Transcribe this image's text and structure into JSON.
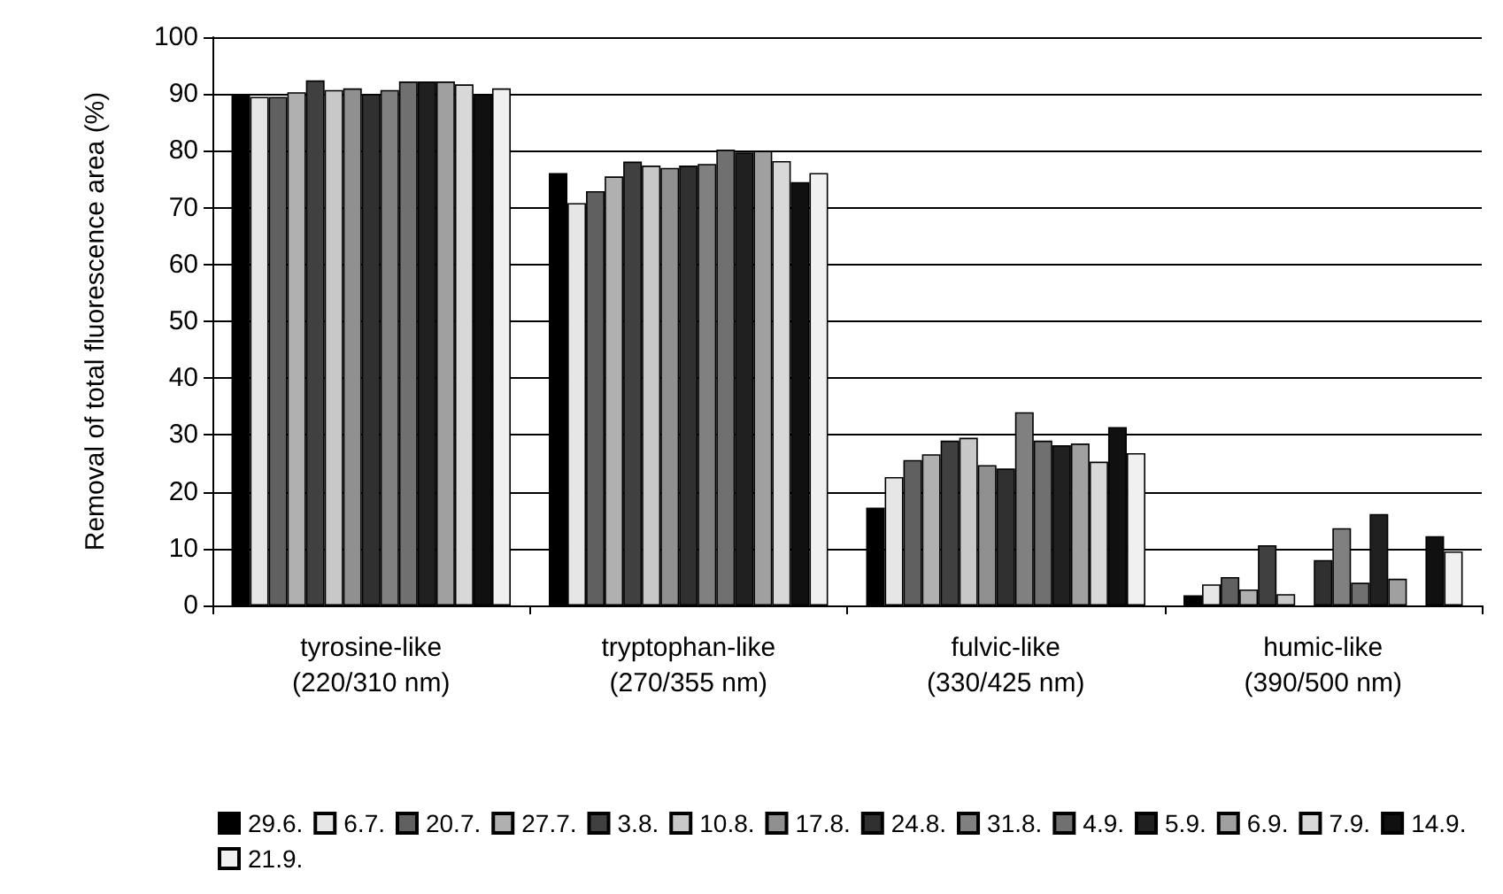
{
  "chart_data": {
    "type": "bar",
    "ylabel": "Removal of total fluorescence area (%)",
    "categories": [
      "tyrosine-like\n(220/310 nm)",
      "tryptophan-like\n(270/355 nm)",
      "fulvic-like\n(330/425 nm)",
      "humic-like\n(390/500 nm)"
    ],
    "series": [
      {
        "name": "29.6.",
        "color": "#000000",
        "values": [
          90,
          76.1,
          17.2,
          1.8
        ]
      },
      {
        "name": "6.7.",
        "color": "#e6e6e6",
        "values": [
          89.5,
          70.8,
          22.6,
          3.7
        ]
      },
      {
        "name": "20.7.",
        "color": "#606060",
        "values": [
          89.5,
          72.9,
          25.6,
          5
        ]
      },
      {
        "name": "27.7.",
        "color": "#b0b0b0",
        "values": [
          90.3,
          75.5,
          26.6,
          2.8
        ]
      },
      {
        "name": "3.8.",
        "color": "#404040",
        "values": [
          92.4,
          78.1,
          29,
          10.6
        ]
      },
      {
        "name": "10.8.",
        "color": "#c8c8c8",
        "values": [
          90.7,
          77.4,
          29.5,
          2
        ]
      },
      {
        "name": "17.8.",
        "color": "#909090",
        "values": [
          91,
          77,
          24.7,
          0
        ]
      },
      {
        "name": "24.8.",
        "color": "#303030",
        "values": [
          90,
          77.4,
          24.1,
          8
        ]
      },
      {
        "name": "31.8.",
        "color": "#808080",
        "values": [
          90.7,
          77.7,
          34,
          13.6
        ]
      },
      {
        "name": "4.9.",
        "color": "#707070",
        "values": [
          92.2,
          80.2,
          29,
          4
        ]
      },
      {
        "name": "5.9.",
        "color": "#202020",
        "values": [
          92.2,
          79.7,
          28.2,
          16.1
        ]
      },
      {
        "name": "6.9.",
        "color": "#a0a0a0",
        "values": [
          92.2,
          80,
          28.5,
          4.7
        ]
      },
      {
        "name": "7.9.",
        "color": "#d8d8d8",
        "values": [
          91.7,
          78.2,
          25.3,
          0
        ]
      },
      {
        "name": "14.9.",
        "color": "#101010",
        "values": [
          90,
          74.5,
          31.4,
          12.2
        ]
      },
      {
        "name": "21.9.",
        "color": "#f0f0f0",
        "values": [
          91,
          76.1,
          26.8,
          9.5
        ]
      }
    ],
    "ylim": [
      0,
      100
    ],
    "yticks": [
      0,
      10,
      20,
      30,
      40,
      50,
      60,
      70,
      80,
      90,
      100
    ],
    "grid": "y",
    "legend": "bottom"
  }
}
